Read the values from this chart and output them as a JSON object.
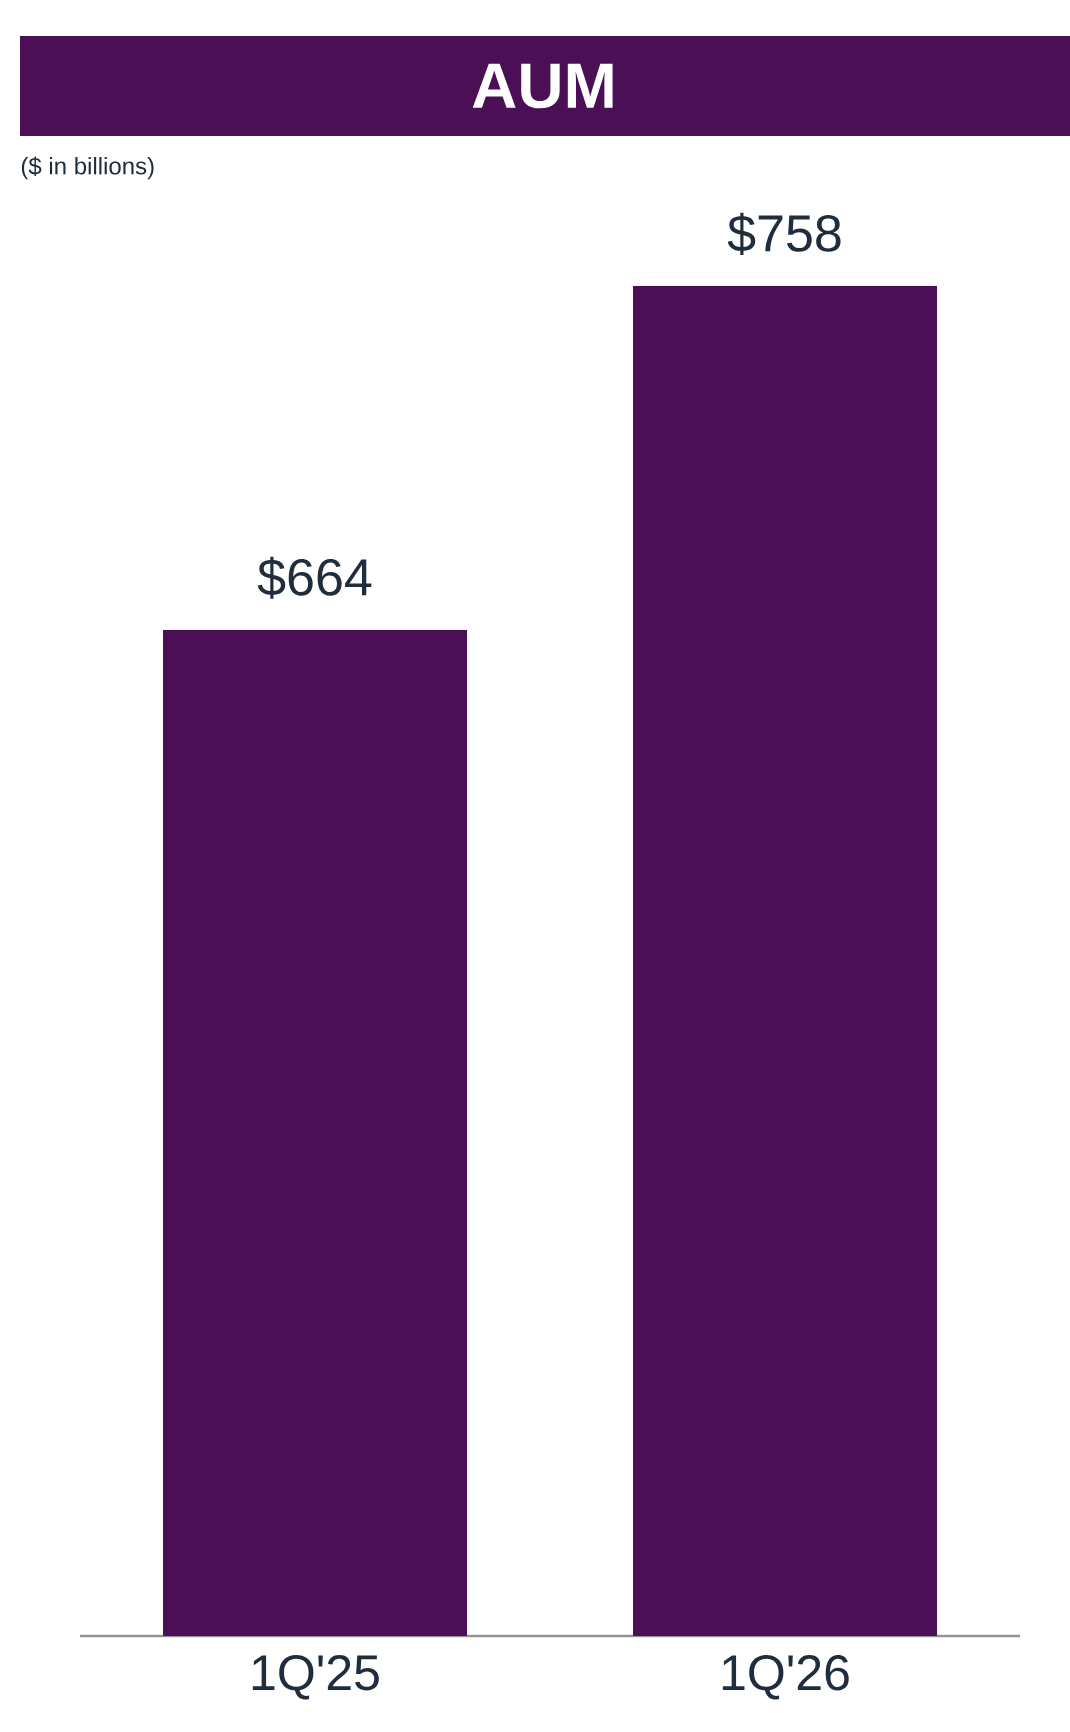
{
  "chart_data": {
    "type": "bar",
    "title": "AUM",
    "subtitle": "($ in billions)",
    "categories": [
      "1Q'25",
      "1Q'26"
    ],
    "values": [
      664,
      758
    ],
    "value_labels": [
      "$664",
      "$758"
    ],
    "color": "#4b0f55",
    "ylim": [
      389,
      758
    ],
    "tick_labels": "x"
  }
}
